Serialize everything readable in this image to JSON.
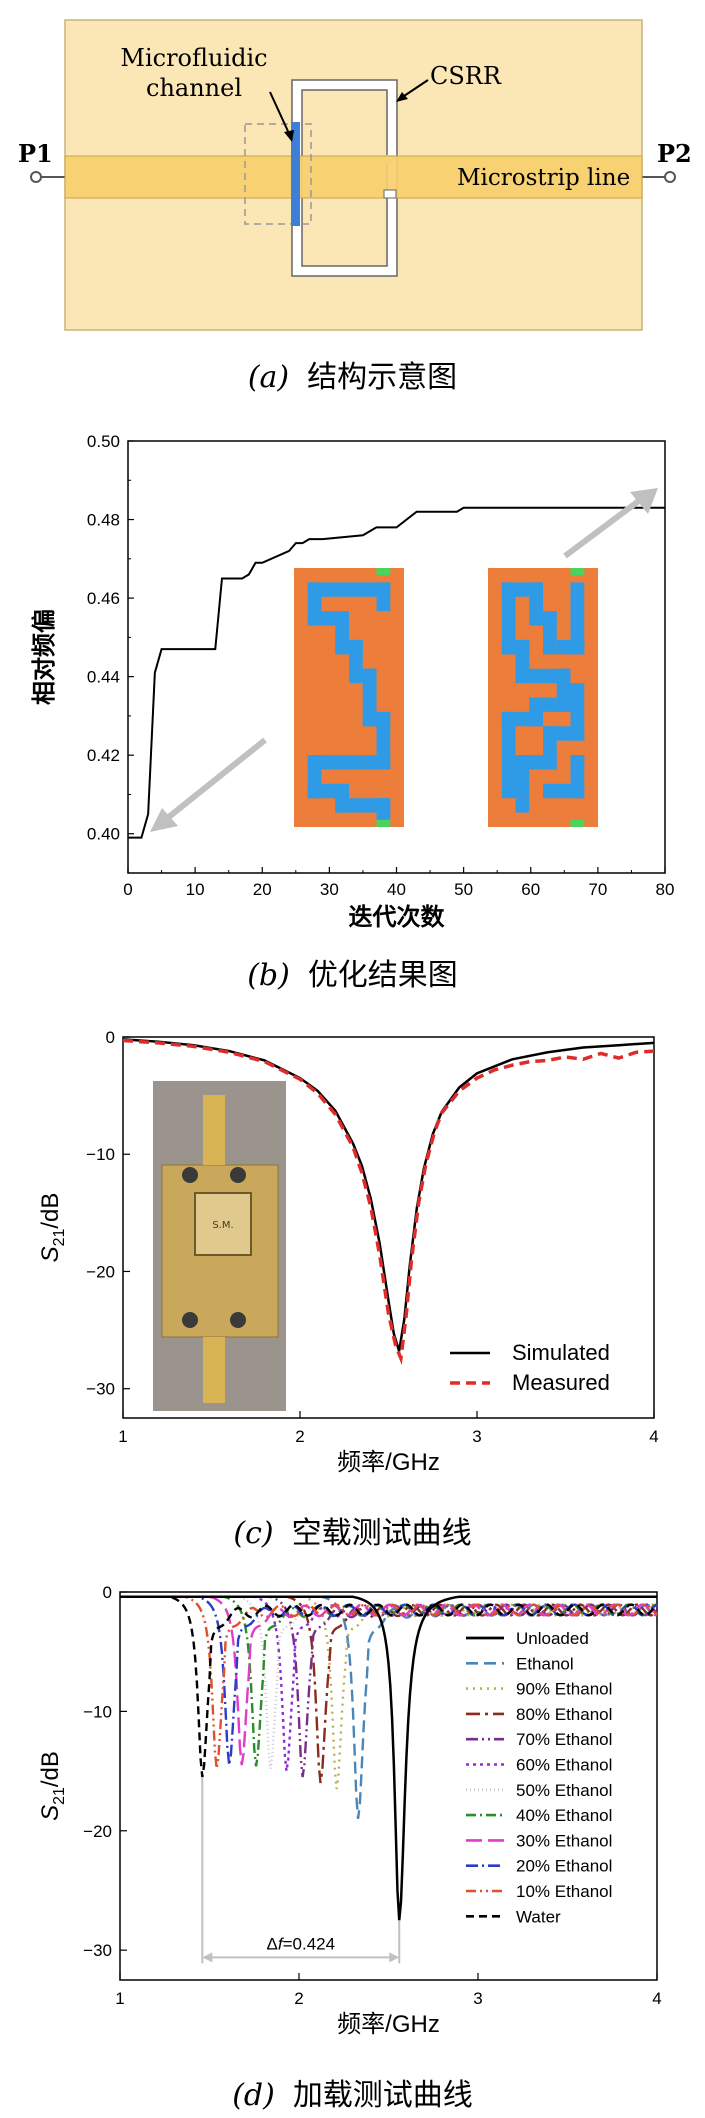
{
  "panel_a": {
    "label_p1": "P1",
    "label_p2": "P2",
    "label_channel_line1": "Microfluidic",
    "label_channel_line2": "channel",
    "label_csrr": "CSRR",
    "label_microstrip": "Microstrip line",
    "caption_label": "(a)",
    "caption_text": "结构示意图",
    "colors": {
      "substrate": "#fbe7b5",
      "microstrip": "#f7cf6e",
      "channel": "#3d7fd6"
    }
  },
  "chart_data": [
    {
      "type": "line",
      "ylabel": "相对频偏",
      "xlabel": "迭代次数",
      "xlim": [
        0,
        80
      ],
      "ylim": [
        0.39,
        0.5
      ],
      "xticks": [
        "0",
        "10",
        "20",
        "30",
        "40",
        "50",
        "60",
        "70",
        "80"
      ],
      "yticks": [
        "0.40",
        "0.42",
        "0.44",
        "0.46",
        "0.48",
        "0.50"
      ],
      "series": [
        {
          "x": [
            0,
            2,
            3,
            4,
            5,
            13,
            14,
            17,
            18,
            19,
            20,
            24,
            25,
            26,
            27,
            29,
            35,
            37,
            39,
            40,
            43,
            46,
            49,
            50,
            80
          ],
          "y": [
            0.399,
            0.399,
            0.405,
            0.441,
            0.447,
            0.447,
            0.465,
            0.465,
            0.466,
            0.469,
            0.469,
            0.472,
            0.474,
            0.474,
            0.475,
            0.475,
            0.476,
            0.478,
            0.478,
            0.478,
            0.482,
            0.482,
            0.482,
            0.483,
            0.483
          ]
        }
      ],
      "caption_label": "(b)",
      "caption_text": "优化结果图",
      "colors": {
        "pattern_bg": "#ec7d3b",
        "pattern_path": "#2f9be6",
        "port": "#4ad35d"
      }
    },
    {
      "type": "line",
      "xlabel": "频率/GHz",
      "ylabel_main": "S",
      "ylabel_sub": "21",
      "ylabel_unit": "/dB",
      "xlim": [
        1,
        4
      ],
      "ylim": [
        -32.5,
        0
      ],
      "xticks": [
        "1",
        "2",
        "3",
        "4"
      ],
      "yticks": [
        "0",
        "−10",
        "−20",
        "−30"
      ],
      "series": [
        {
          "name": "Simulated",
          "color": "#000000",
          "x": [
            1,
            1.2,
            1.4,
            1.6,
            1.8,
            2.0,
            2.1,
            2.2,
            2.3,
            2.35,
            2.4,
            2.45,
            2.5,
            2.53,
            2.56,
            2.59,
            2.62,
            2.66,
            2.7,
            2.75,
            2.8,
            2.9,
            3.0,
            3.2,
            3.4,
            3.6,
            3.8,
            4.0
          ],
          "y": [
            -0.2,
            -0.4,
            -0.7,
            -1.2,
            -2.0,
            -3.5,
            -4.6,
            -6.3,
            -9.1,
            -11.0,
            -13.8,
            -17.6,
            -22.5,
            -25.3,
            -26.8,
            -24.0,
            -19.5,
            -14.6,
            -11.2,
            -8.3,
            -6.4,
            -4.3,
            -3.1,
            -1.9,
            -1.3,
            -0.9,
            -0.7,
            -0.5
          ]
        },
        {
          "name": "Measured",
          "color": "#e02b2b",
          "x": [
            1,
            1.2,
            1.4,
            1.6,
            1.8,
            2.0,
            2.1,
            2.2,
            2.3,
            2.35,
            2.4,
            2.45,
            2.5,
            2.54,
            2.57,
            2.6,
            2.63,
            2.67,
            2.71,
            2.76,
            2.8,
            2.9,
            3.0,
            3.1,
            3.2,
            3.3,
            3.4,
            3.5,
            3.6,
            3.7,
            3.8,
            3.9,
            4.0
          ],
          "y": [
            -0.3,
            -0.5,
            -0.8,
            -1.3,
            -2.1,
            -3.6,
            -4.8,
            -6.6,
            -9.4,
            -11.6,
            -14.5,
            -18.6,
            -23.6,
            -26.3,
            -27.4,
            -23.7,
            -19.0,
            -14.2,
            -10.9,
            -8.1,
            -6.5,
            -4.6,
            -3.5,
            -2.8,
            -2.4,
            -2.1,
            -2.0,
            -1.7,
            -1.9,
            -1.4,
            -1.8,
            -1.3,
            -1.2
          ]
        }
      ],
      "photo_label": "S.M.",
      "caption_label": "(c)",
      "caption_text": "空载测试曲线"
    },
    {
      "type": "line",
      "xlabel": "频率/GHz",
      "ylabel_main": "S",
      "ylabel_sub": "21",
      "ylabel_unit": "/dB",
      "xlim": [
        1,
        4
      ],
      "ylim": [
        -32.5,
        0
      ],
      "xticks": [
        "1",
        "2",
        "3",
        "4"
      ],
      "yticks": [
        "0",
        "−10",
        "−20",
        "−30"
      ],
      "annotation": {
        "text_prefix": "Δ",
        "text_var": "f",
        "text_value": "=0.424",
        "x_from": 1.46,
        "x_to": 2.56
      },
      "series": [
        {
          "name": "Unloaded",
          "color": "#000000",
          "dash": "",
          "f0": 2.56,
          "depth": 27.5
        },
        {
          "name": "Ethanol",
          "color": "#4a86b8",
          "dash": "12,6",
          "f0": 2.33,
          "depth": 19.0
        },
        {
          "name": "90% Ethanol",
          "color": "#b8b04a",
          "dash": "2,5",
          "f0": 2.21,
          "depth": 16.5
        },
        {
          "name": "80% Ethanol",
          "color": "#8b2c1f",
          "dash": "14,5,3,5",
          "f0": 2.12,
          "depth": 16.0
        },
        {
          "name": "70% Ethanol",
          "color": "#7a2d8c",
          "dash": "12,4,2,4,2,4",
          "f0": 2.02,
          "depth": 15.5
        },
        {
          "name": "60% Ethanol",
          "color": "#8d2bd6",
          "dash": "3,4",
          "f0": 1.93,
          "depth": 15.0
        },
        {
          "name": "50% Ethanol",
          "color": "#c8c8d0",
          "dash": "1,3",
          "f0": 1.84,
          "depth": 14.8
        },
        {
          "name": "40% Ethanol",
          "color": "#2a8c2a",
          "dash": "10,4,2,4",
          "f0": 1.76,
          "depth": 14.6
        },
        {
          "name": "30% Ethanol",
          "color": "#e03cc8",
          "dash": "16,6",
          "f0": 1.68,
          "depth": 14.5
        },
        {
          "name": "20% Ethanol",
          "color": "#2a3cc8",
          "dash": "12,4,2,4",
          "f0": 1.61,
          "depth": 14.5
        },
        {
          "name": "10% Ethanol",
          "color": "#e0502a",
          "dash": "10,4,2,4,2,4",
          "f0": 1.54,
          "depth": 14.8
        },
        {
          "name": "Water",
          "color": "#000000",
          "dash": "8,5",
          "f0": 1.46,
          "depth": 15.5
        }
      ],
      "caption_label": "(d)",
      "caption_text": "加载测试曲线"
    }
  ]
}
